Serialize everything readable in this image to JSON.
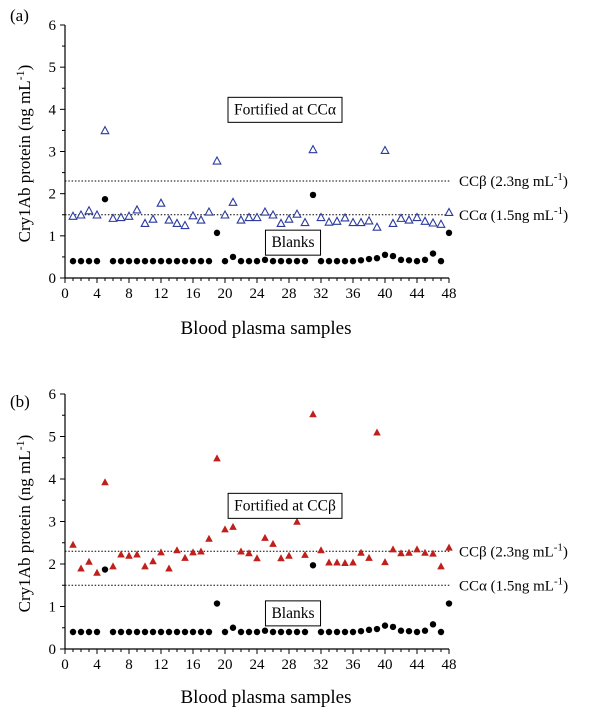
{
  "chart_data": [
    {
      "panel_label": "(a)",
      "type": "scatter",
      "xlabel": "Blood plasma samples",
      "ylabel": "Cry1Ab protein (ng mL",
      "ylabel_sup": "-1",
      "ylabel_close": ")",
      "xlim": [
        0,
        48
      ],
      "ylim": [
        0,
        6
      ],
      "xticks": [
        0,
        4,
        8,
        12,
        16,
        20,
        24,
        28,
        32,
        36,
        40,
        44,
        48
      ],
      "yticks": [
        0,
        1,
        2,
        3,
        4,
        5,
        6
      ],
      "reference_lines": [
        {
          "label": "CCβ (2.3ng mL",
          "sup": "-1",
          "close": ")",
          "y": 2.3
        },
        {
          "label": "CCα (1.5ng mL",
          "sup": "-1",
          "close": ")",
          "y": 1.5
        }
      ],
      "annotations": [
        {
          "text": "Fortified at CCα",
          "x": 27.5,
          "y": 4.0
        },
        {
          "text": "Blanks",
          "x": 28.5,
          "y": 0.85
        }
      ],
      "series": [
        {
          "marker": "open-triangle",
          "color": "#2a3a9e",
          "x": [
            1,
            2,
            3,
            4,
            5,
            6,
            7,
            8,
            9,
            10,
            11,
            12,
            13,
            14,
            15,
            16,
            17,
            18,
            19,
            20,
            21,
            22,
            23,
            24,
            25,
            26,
            27,
            28,
            29,
            30,
            31,
            32,
            33,
            34,
            35,
            36,
            37,
            38,
            39,
            40,
            41,
            42,
            43,
            44,
            45,
            46,
            47,
            48
          ],
          "y": [
            1.47,
            1.5,
            1.6,
            1.5,
            3.5,
            1.42,
            1.44,
            1.47,
            1.62,
            1.3,
            1.4,
            1.78,
            1.38,
            1.3,
            1.25,
            1.48,
            1.38,
            1.57,
            2.78,
            1.5,
            1.8,
            1.38,
            1.44,
            1.44,
            1.57,
            1.5,
            1.3,
            1.4,
            1.52,
            1.32,
            3.05,
            1.44,
            1.33,
            1.35,
            1.43,
            1.32,
            1.32,
            1.36,
            1.21,
            3.03,
            1.3,
            1.42,
            1.38,
            1.44,
            1.35,
            1.31,
            1.28,
            1.56
          ]
        },
        {
          "marker": "filled-circle",
          "color": "#000000",
          "x": [
            1,
            2,
            3,
            4,
            5,
            6,
            7,
            8,
            9,
            10,
            11,
            12,
            13,
            14,
            15,
            16,
            17,
            18,
            19,
            20,
            21,
            22,
            23,
            24,
            25,
            26,
            27,
            28,
            29,
            30,
            31,
            32,
            33,
            34,
            35,
            36,
            37,
            38,
            39,
            40,
            41,
            42,
            43,
            44,
            45,
            46,
            47,
            48
          ],
          "y": [
            0.4,
            0.4,
            0.4,
            0.4,
            1.87,
            0.4,
            0.4,
            0.4,
            0.4,
            0.4,
            0.4,
            0.4,
            0.4,
            0.4,
            0.4,
            0.4,
            0.4,
            0.4,
            1.07,
            0.4,
            0.5,
            0.4,
            0.4,
            0.4,
            0.43,
            0.4,
            0.4,
            0.4,
            0.4,
            0.4,
            1.97,
            0.4,
            0.4,
            0.4,
            0.4,
            0.4,
            0.42,
            0.45,
            0.47,
            0.55,
            0.52,
            0.43,
            0.42,
            0.4,
            0.43,
            0.58,
            0.4,
            1.07
          ]
        }
      ]
    },
    {
      "panel_label": "(b)",
      "type": "scatter",
      "xlabel": "Blood plasma samples",
      "ylabel": "Cry1Ab protein (ng mL",
      "ylabel_sup": "-1",
      "ylabel_close": ")",
      "xlim": [
        0,
        48
      ],
      "ylim": [
        0,
        6
      ],
      "xticks": [
        0,
        4,
        8,
        12,
        16,
        20,
        24,
        28,
        32,
        36,
        40,
        44,
        48
      ],
      "yticks": [
        0,
        1,
        2,
        3,
        4,
        5,
        6
      ],
      "reference_lines": [
        {
          "label": "CCβ (2.3ng mL",
          "sup": "-1",
          "close": ")",
          "y": 2.3
        },
        {
          "label": "CCα (1.5ng mL",
          "sup": "-1",
          "close": ")",
          "y": 1.5
        }
      ],
      "annotations": [
        {
          "text": "Fortified at CCβ",
          "x": 27.5,
          "y": 3.38
        },
        {
          "text": "Blanks",
          "x": 28.5,
          "y": 0.85
        }
      ],
      "series": [
        {
          "marker": "filled-triangle",
          "color": "#c0201b",
          "x": [
            1,
            2,
            3,
            4,
            5,
            6,
            7,
            8,
            9,
            10,
            11,
            12,
            13,
            14,
            15,
            16,
            17,
            18,
            19,
            20,
            21,
            22,
            23,
            24,
            25,
            26,
            27,
            28,
            29,
            30,
            31,
            32,
            33,
            34,
            35,
            36,
            37,
            38,
            39,
            40,
            41,
            42,
            43,
            44,
            45,
            46,
            47,
            48
          ],
          "y": [
            2.46,
            1.9,
            2.06,
            1.8,
            3.93,
            1.95,
            2.23,
            2.2,
            2.23,
            1.95,
            2.07,
            2.28,
            1.9,
            2.33,
            2.15,
            2.28,
            2.3,
            2.6,
            4.49,
            2.82,
            2.88,
            2.3,
            2.26,
            2.14,
            2.62,
            2.48,
            2.14,
            2.2,
            3.0,
            2.22,
            5.53,
            2.33,
            2.04,
            2.04,
            2.03,
            2.04,
            2.27,
            2.15,
            5.1,
            2.05,
            2.35,
            2.26,
            2.27,
            2.35,
            2.27,
            2.25,
            1.95,
            2.39
          ]
        },
        {
          "marker": "filled-circle",
          "color": "#000000",
          "x": [
            1,
            2,
            3,
            4,
            5,
            6,
            7,
            8,
            9,
            10,
            11,
            12,
            13,
            14,
            15,
            16,
            17,
            18,
            19,
            20,
            21,
            22,
            23,
            24,
            25,
            26,
            27,
            28,
            29,
            30,
            31,
            32,
            33,
            34,
            35,
            36,
            37,
            38,
            39,
            40,
            41,
            42,
            43,
            44,
            45,
            46,
            47,
            48
          ],
          "y": [
            0.4,
            0.4,
            0.4,
            0.4,
            1.87,
            0.4,
            0.4,
            0.4,
            0.4,
            0.4,
            0.4,
            0.4,
            0.4,
            0.4,
            0.4,
            0.4,
            0.4,
            0.4,
            1.07,
            0.4,
            0.5,
            0.4,
            0.4,
            0.4,
            0.43,
            0.4,
            0.4,
            0.4,
            0.4,
            0.4,
            1.97,
            0.4,
            0.4,
            0.4,
            0.4,
            0.4,
            0.42,
            0.45,
            0.47,
            0.55,
            0.52,
            0.43,
            0.42,
            0.4,
            0.43,
            0.58,
            0.4,
            1.07
          ]
        }
      ]
    }
  ]
}
